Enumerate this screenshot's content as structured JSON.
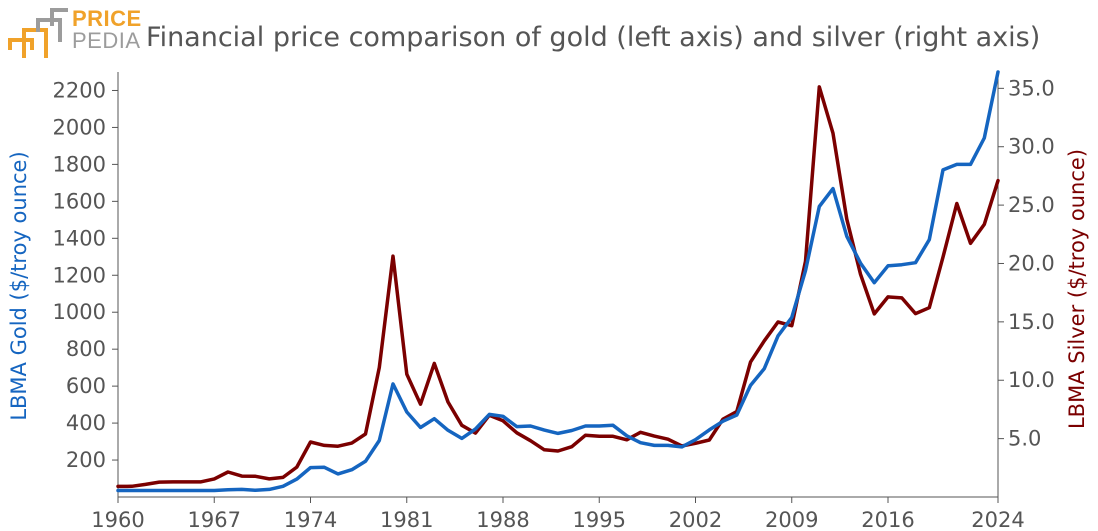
{
  "logo": {
    "top": "PRICE",
    "bottom": "PEDIA"
  },
  "colors": {
    "gold": "#1565c0",
    "silver": "#7b0000",
    "axis": "#555555",
    "logo_orange": "#f0a22a",
    "logo_gray": "#9c9c9c"
  },
  "chart_data": {
    "type": "line",
    "title": "Financial price comparison of gold (left axis) and silver (right axis)",
    "xlabel": "",
    "ylabel": "LBMA Gold ($/troy ounce)",
    "y2label": "LBMA Silver ($/troy ounce)",
    "xlim": [
      1960,
      2024
    ],
    "ylim": [
      0,
      2300
    ],
    "y2lim": [
      0,
      36.4
    ],
    "x_ticks": [
      "1960",
      "1967",
      "1974",
      "1981",
      "1988",
      "1995",
      "2002",
      "2009",
      "2016",
      "2024"
    ],
    "y_ticks": [
      "200",
      "400",
      "600",
      "800",
      "1000",
      "1200",
      "1400",
      "1600",
      "1800",
      "2000",
      "2200"
    ],
    "y2_ticks": [
      "5.0",
      "10.0",
      "15.0",
      "20.0",
      "25.0",
      "30.0",
      "35.0"
    ],
    "x": [
      1960,
      1961,
      1962,
      1963,
      1964,
      1965,
      1966,
      1967,
      1968,
      1969,
      1970,
      1971,
      1972,
      1973,
      1974,
      1975,
      1976,
      1977,
      1978,
      1979,
      1980,
      1981,
      1982,
      1983,
      1984,
      1985,
      1986,
      1987,
      1988,
      1989,
      1990,
      1991,
      1992,
      1993,
      1994,
      1995,
      1996,
      1997,
      1998,
      1999,
      2000,
      2001,
      2002,
      2003,
      2004,
      2005,
      2006,
      2007,
      2008,
      2009,
      2010,
      2011,
      2012,
      2013,
      2014,
      2015,
      2016,
      2017,
      2018,
      2019,
      2020,
      2021,
      2022,
      2023,
      2024
    ],
    "series": [
      {
        "name": "LBMA Gold",
        "axis": "left",
        "values": [
          35,
          35,
          35,
          35,
          35,
          35,
          35,
          35,
          39,
          41,
          36,
          41,
          58,
          97,
          159,
          161,
          125,
          148,
          193,
          306,
          612,
          460,
          376,
          424,
          361,
          317,
          368,
          447,
          437,
          381,
          384,
          362,
          344,
          360,
          384,
          384,
          388,
          331,
          294,
          279,
          279,
          271,
          310,
          363,
          410,
          444,
          604,
          695,
          872,
          972,
          1225,
          1572,
          1669,
          1411,
          1266,
          1160,
          1251,
          1257,
          1268,
          1393,
          1770,
          1800,
          1800,
          1943,
          2300
        ]
      },
      {
        "name": "LBMA Silver",
        "axis": "right",
        "values": [
          0.91,
          0.92,
          1.08,
          1.28,
          1.29,
          1.29,
          1.29,
          1.55,
          2.14,
          1.79,
          1.77,
          1.55,
          1.68,
          2.56,
          4.71,
          4.42,
          4.35,
          4.62,
          5.4,
          11.09,
          20.63,
          10.52,
          7.95,
          11.44,
          8.14,
          6.14,
          5.47,
          7.01,
          6.53,
          5.5,
          4.82,
          4.04,
          3.94,
          4.31,
          5.29,
          5.2,
          5.2,
          4.9,
          5.54,
          5.22,
          4.95,
          4.37,
          4.6,
          4.88,
          6.67,
          7.32,
          11.55,
          13.38,
          14.99,
          14.67,
          20.19,
          35.12,
          31.15,
          23.79,
          19.08,
          15.68,
          17.14,
          17.05,
          15.71,
          16.21,
          20.55,
          25.14,
          21.73,
          23.35,
          27.1
        ]
      }
    ],
    "grid": false,
    "legend": "none"
  }
}
